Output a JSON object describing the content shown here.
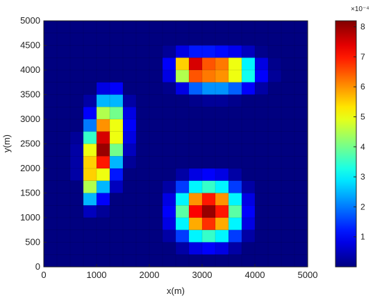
{
  "chart_data": {
    "type": "heatmap",
    "xlabel": "x(m)",
    "ylabel": "y(m)",
    "xlim": [
      0,
      5000
    ],
    "ylim": [
      0,
      5000
    ],
    "xticks": [
      0,
      1000,
      2000,
      3000,
      4000,
      5000
    ],
    "yticks": [
      0,
      500,
      1000,
      1500,
      2000,
      2500,
      3000,
      3500,
      4000,
      4500,
      5000
    ],
    "x": [
      125,
      375,
      625,
      875,
      1125,
      1375,
      1625,
      1875,
      2125,
      2375,
      2625,
      2875,
      3125,
      3375,
      3625,
      3875,
      4125,
      4375,
      4625,
      4875
    ],
    "y": [
      4875,
      4625,
      4375,
      4125,
      3875,
      3625,
      3375,
      3125,
      2875,
      2625,
      2375,
      2125,
      1875,
      1625,
      1375,
      1125,
      875,
      625,
      375,
      125
    ],
    "z": [
      [
        0,
        0,
        0,
        0,
        0,
        0,
        0,
        0,
        0,
        0,
        0,
        0,
        0,
        0,
        0,
        0,
        0,
        0,
        0,
        0
      ],
      [
        0,
        0,
        0,
        0,
        0,
        0,
        0,
        0,
        0,
        0,
        0,
        0,
        0,
        0,
        0,
        0,
        0,
        0,
        0,
        0
      ],
      [
        0,
        0,
        0,
        0,
        0,
        0,
        0,
        0,
        0,
        0.2,
        0.8,
        1.2,
        1.2,
        1.1,
        0.9,
        0.5,
        0.1,
        0,
        0,
        0
      ],
      [
        0,
        0,
        0,
        0,
        0,
        0,
        0,
        0,
        0,
        1.0,
        5.5,
        7.5,
        6.5,
        6.2,
        5.0,
        3.0,
        0.8,
        0.1,
        0,
        0
      ],
      [
        0,
        0,
        0,
        0,
        0,
        0,
        0,
        0,
        0,
        0.8,
        4.5,
        6.5,
        6.2,
        6.0,
        5.0,
        3.2,
        1.0,
        0.2,
        0,
        0
      ],
      [
        0,
        0,
        0,
        0,
        0.8,
        1.0,
        0,
        0,
        0,
        0.1,
        0.8,
        1.8,
        2.2,
        2.2,
        1.8,
        1.0,
        0.3,
        0,
        0,
        0
      ],
      [
        0,
        0,
        0,
        0.3,
        2.5,
        2.5,
        0.3,
        0,
        0,
        0,
        0,
        0.1,
        0.2,
        0.2,
        0.1,
        0,
        0,
        0,
        0,
        0
      ],
      [
        0,
        0,
        0,
        1.0,
        4.5,
        4.0,
        0.8,
        0,
        0,
        0,
        0,
        0,
        0,
        0,
        0,
        0,
        0,
        0,
        0,
        0
      ],
      [
        0,
        0,
        0,
        2.0,
        6.0,
        5.0,
        1.0,
        0,
        0,
        0,
        0,
        0,
        0,
        0,
        0,
        0,
        0,
        0,
        0,
        0
      ],
      [
        0,
        0,
        0.2,
        3.5,
        7.5,
        5.0,
        0.8,
        0,
        0,
        0,
        0,
        0,
        0,
        0,
        0,
        0,
        0,
        0,
        0,
        0
      ],
      [
        0,
        0,
        0.3,
        5.0,
        8.0,
        4.0,
        0.5,
        0,
        0,
        0,
        0,
        0,
        0,
        0,
        0,
        0,
        0,
        0,
        0,
        0
      ],
      [
        0,
        0,
        0.3,
        5.5,
        7.0,
        2.5,
        0.2,
        0,
        0,
        0,
        0,
        0,
        0,
        0,
        0,
        0,
        0,
        0,
        0,
        0
      ],
      [
        0,
        0,
        0.3,
        5.5,
        5.0,
        1.2,
        0,
        0,
        0,
        0,
        0.3,
        0.8,
        1.0,
        0.8,
        0.3,
        0,
        0,
        0,
        0,
        0
      ],
      [
        0,
        0,
        0,
        4.5,
        2.5,
        0.5,
        0,
        0,
        0,
        0.3,
        1.5,
        3.0,
        3.5,
        3.0,
        1.5,
        0.3,
        0,
        0,
        0,
        0
      ],
      [
        0,
        0,
        0,
        2.5,
        1.0,
        0,
        0,
        0,
        0,
        0.8,
        3.0,
        6.0,
        7.0,
        6.0,
        3.0,
        0.8,
        0,
        0,
        0,
        0
      ],
      [
        0,
        0,
        0,
        0.5,
        0.2,
        0,
        0,
        0,
        0,
        1.0,
        3.8,
        7.2,
        8.0,
        7.0,
        3.8,
        1.0,
        0,
        0,
        0,
        0
      ],
      [
        0,
        0,
        0,
        0,
        0,
        0,
        0,
        0,
        0,
        0.8,
        3.0,
        5.8,
        6.8,
        5.8,
        3.0,
        0.8,
        0,
        0,
        0,
        0
      ],
      [
        0,
        0,
        0,
        0,
        0,
        0,
        0,
        0,
        0,
        0.3,
        1.5,
        3.0,
        3.5,
        3.0,
        1.5,
        0.3,
        0,
        0,
        0,
        0
      ],
      [
        0,
        0,
        0,
        0,
        0,
        0,
        0,
        0,
        0,
        0,
        0.3,
        0.8,
        1.0,
        0.8,
        0.3,
        0,
        0,
        0,
        0,
        0
      ],
      [
        0,
        0,
        0,
        0,
        0,
        0,
        0,
        0,
        0,
        0,
        0,
        0,
        0,
        0,
        0,
        0,
        0,
        0,
        0,
        0
      ]
    ],
    "colormap": "jet",
    "clim": [
      0,
      8.2
    ],
    "colorbar_ticks": [
      1,
      2,
      3,
      4,
      5,
      6,
      7,
      8
    ],
    "colorbar_multiplier": "×10⁻⁴"
  }
}
